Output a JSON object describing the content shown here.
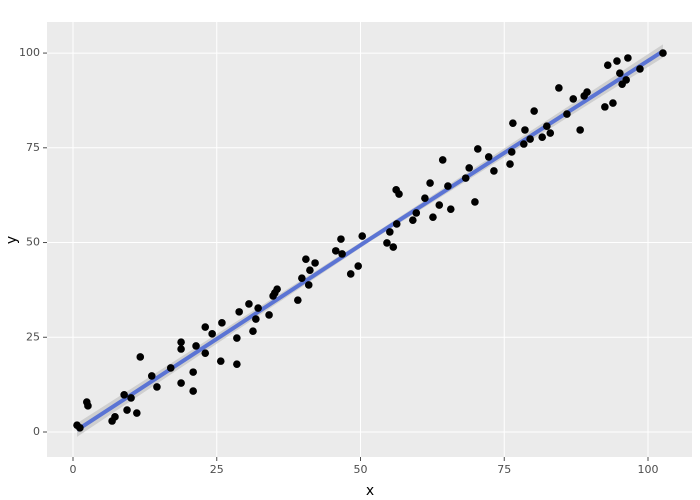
{
  "chart_data": {
    "type": "scatter",
    "x_label": "x",
    "y_label": "y",
    "xlim": [
      -4.52,
      107.65
    ],
    "ylim": [
      -6.6,
      108.2
    ],
    "xticks": [
      0,
      25,
      50,
      75,
      100
    ],
    "yticks": [
      0,
      25,
      50,
      75,
      100
    ],
    "grid": true,
    "points": {
      "color": "#000000",
      "x": [
        0.7,
        1.2,
        2.4,
        2.6,
        6.8,
        7.3,
        8.9,
        9.4,
        10.1,
        11.1,
        11.7,
        13.7,
        14.6,
        17.0,
        18.8,
        18.8,
        18.8,
        20.9,
        20.9,
        21.4,
        23.0,
        23.0,
        24.2,
        25.7,
        25.9,
        28.5,
        28.5,
        28.9,
        30.6,
        31.3,
        31.8,
        32.2,
        34.1,
        34.8,
        35.1,
        35.5,
        39.1,
        39.8,
        40.5,
        41.0,
        41.2,
        42.1,
        45.7,
        46.6,
        46.8,
        48.3,
        49.6,
        50.3,
        54.6,
        55.1,
        55.7,
        56.2,
        56.3,
        56.7,
        59.1,
        59.7,
        61.2,
        62.1,
        62.6,
        63.7,
        64.3,
        65.2,
        65.7,
        68.3,
        68.9,
        69.9,
        70.4,
        72.3,
        73.2,
        76.0,
        76.3,
        76.5,
        78.4,
        78.6,
        79.5,
        80.2,
        81.6,
        82.4,
        83.0,
        84.5,
        85.9,
        87.0,
        88.2,
        88.9,
        89.4,
        92.5,
        93.0,
        93.9,
        94.6,
        95.1,
        95.5,
        96.2,
        96.5,
        98.6,
        102.6
      ],
      "y": [
        1.8,
        1.1,
        7.9,
        6.9,
        2.9,
        4.0,
        9.8,
        5.8,
        9.0,
        5.0,
        19.8,
        14.8,
        11.9,
        16.9,
        23.7,
        21.9,
        12.9,
        15.8,
        10.8,
        22.7,
        27.7,
        20.8,
        25.9,
        18.7,
        28.8,
        24.8,
        17.9,
        31.7,
        33.8,
        26.6,
        29.8,
        32.7,
        30.9,
        35.9,
        36.7,
        37.7,
        34.8,
        40.6,
        45.6,
        38.8,
        42.7,
        44.6,
        47.8,
        50.9,
        47.0,
        41.7,
        43.8,
        51.7,
        49.9,
        52.8,
        48.8,
        63.9,
        54.9,
        62.8,
        55.9,
        57.8,
        61.7,
        65.7,
        56.7,
        59.9,
        71.8,
        64.9,
        58.8,
        67.0,
        69.7,
        60.7,
        74.7,
        72.6,
        68.9,
        70.7,
        73.9,
        81.5,
        76.0,
        79.7,
        77.3,
        84.7,
        77.8,
        80.7,
        78.9,
        90.8,
        83.9,
        87.9,
        79.7,
        88.7,
        89.7,
        85.8,
        96.8,
        86.8,
        97.9,
        94.7,
        91.8,
        92.9,
        98.7,
        95.8,
        100.0
      ]
    },
    "band": {
      "color": "#c8c8c8",
      "x": [
        0.7,
        51.6,
        102.6
      ],
      "lower": [
        -1.3,
        50.2,
        98.8
      ],
      "upper": [
        2.3,
        51.6,
        102.3
      ]
    },
    "fit": {
      "color": "#5b74d4",
      "x": [
        0.7,
        51.6,
        102.6
      ],
      "y": [
        0.5,
        50.9,
        100.5
      ]
    }
  }
}
